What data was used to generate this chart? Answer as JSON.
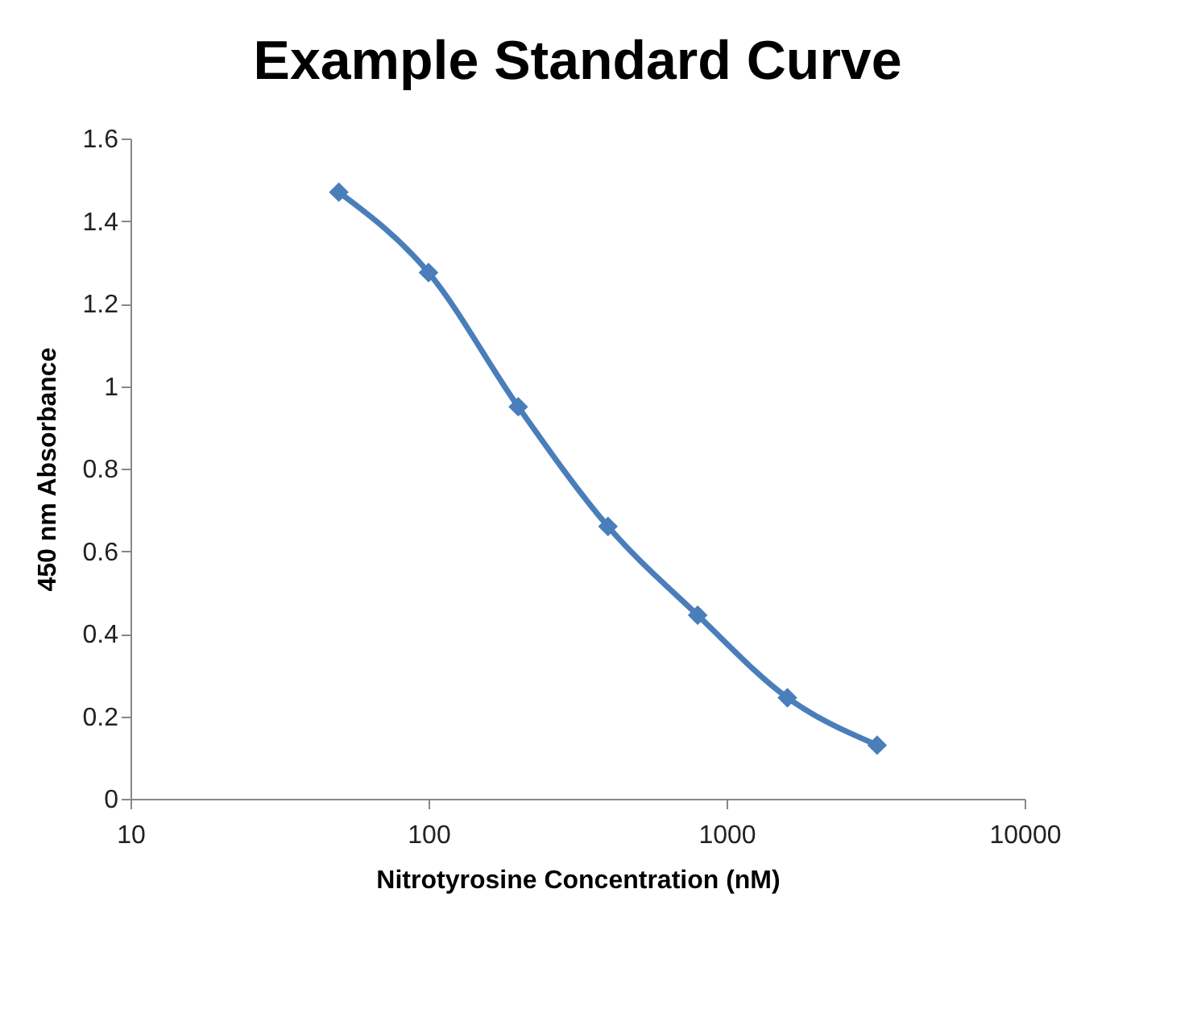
{
  "chart_data": {
    "type": "line",
    "title": "Example Standard Curve",
    "xlabel": "Nitrotyrosine Concentration (nM)",
    "ylabel": "450 nm Absorbance",
    "x": [
      50,
      100,
      200,
      400,
      800,
      1600,
      3200
    ],
    "series": [
      {
        "color": "#4a7ebb",
        "values": [
          1.47,
          1.275,
          0.95,
          0.66,
          0.445,
          0.245,
          0.13
        ]
      }
    ],
    "xlim": [
      10,
      10000
    ],
    "xticks": [
      10,
      100,
      1000,
      10000
    ],
    "ylim": [
      0,
      1.6
    ],
    "yticks": [
      0,
      0.2,
      0.4,
      0.6,
      0.8,
      1,
      1.2,
      1.4,
      1.6
    ],
    "log": "x",
    "grid": false,
    "marker": "diamond",
    "line_style": "solid"
  }
}
